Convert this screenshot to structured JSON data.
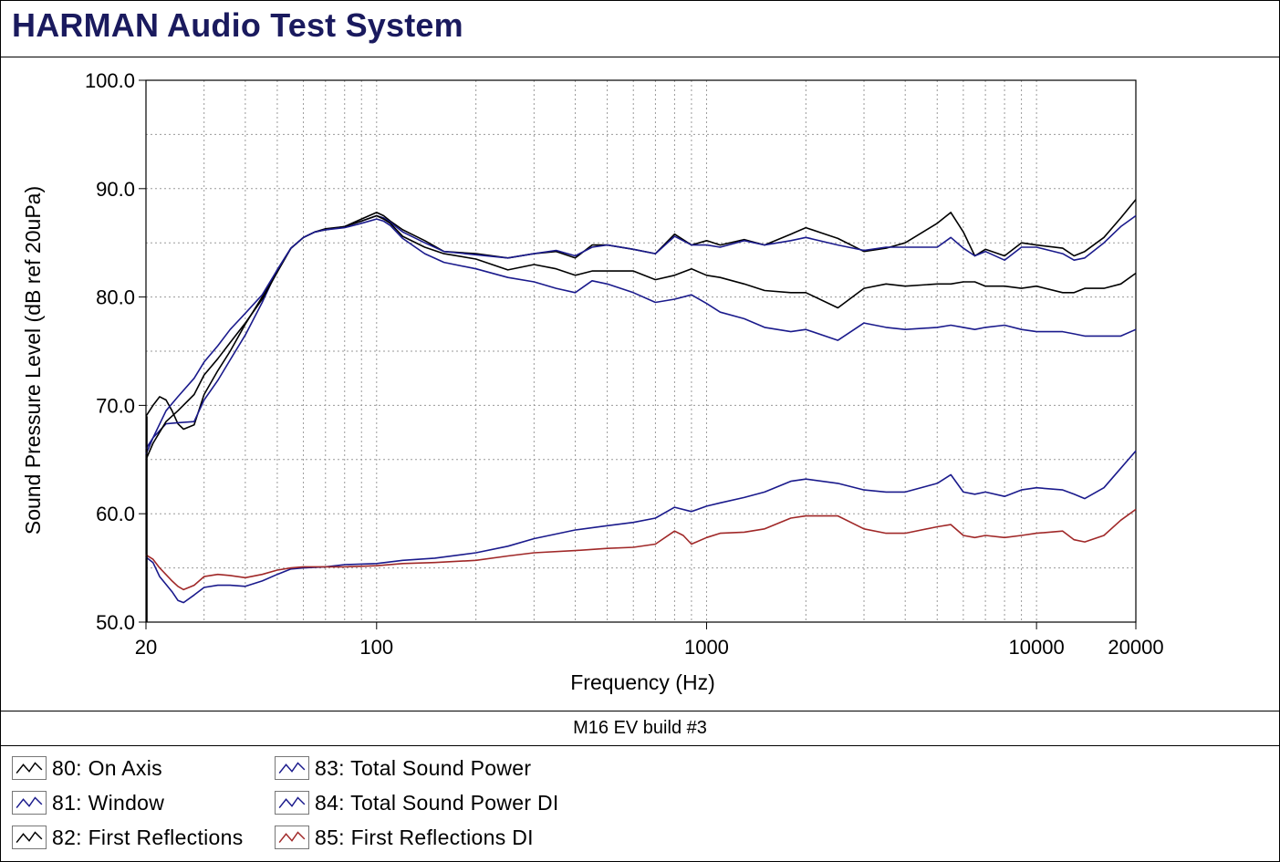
{
  "app": {
    "title": "HARMAN Audio Test System"
  },
  "caption": "M16 EV build #3",
  "chart_data": {
    "type": "line",
    "xscale": "log",
    "xlabel": "Frequency (Hz)",
    "ylabel": "Sound Pressure Level (dB ref 20uPa)",
    "xlim": [
      20,
      20000
    ],
    "ylim": [
      50,
      100
    ],
    "xtick_labels": [
      "20",
      "100",
      "1000",
      "10000",
      "20000"
    ],
    "xtick_values": [
      20,
      100,
      1000,
      10000,
      20000
    ],
    "ytick_labels": [
      "50.0",
      "60.0",
      "70.0",
      "80.0",
      "90.0",
      "100.0"
    ],
    "ytick_values": [
      50,
      60,
      70,
      80,
      90,
      100
    ],
    "grid": true,
    "legend_position": "bottom",
    "series": [
      {
        "name": "80: On Axis",
        "color": "#000000",
        "x": [
          20,
          21,
          22,
          23,
          24,
          25,
          26,
          28,
          30,
          33,
          36,
          40,
          45,
          50,
          55,
          60,
          65,
          70,
          80,
          90,
          100,
          105,
          110,
          120,
          140,
          160,
          200,
          250,
          300,
          350,
          400,
          450,
          500,
          600,
          700,
          800,
          900,
          1000,
          1100,
          1300,
          1500,
          1800,
          2000,
          2500,
          3000,
          3500,
          4000,
          5000,
          5500,
          6000,
          6500,
          7000,
          8000,
          9000,
          10000,
          12000,
          13000,
          14000,
          16000,
          18000,
          20000
        ],
        "y": [
          69,
          70,
          70.8,
          70.5,
          69.5,
          68.3,
          67.8,
          68.2,
          71.0,
          73.2,
          75.0,
          77.5,
          80.0,
          82.5,
          84.5,
          85.5,
          86.0,
          86.3,
          86.5,
          87.2,
          87.8,
          87.5,
          87.0,
          86.2,
          85.2,
          84.2,
          84.0,
          83.6,
          84.0,
          84.2,
          83.6,
          84.8,
          84.8,
          84.4,
          84.0,
          85.8,
          84.8,
          85.2,
          84.8,
          85.3,
          84.8,
          85.8,
          86.4,
          85.4,
          84.2,
          84.5,
          85.0,
          86.8,
          87.8,
          86.0,
          83.8,
          84.4,
          83.8,
          85.0,
          84.8,
          84.5,
          83.8,
          84.2,
          85.5,
          87.3,
          89.0
        ]
      },
      {
        "name": "81: Window",
        "color": "#1a1a8c",
        "x": [
          20,
          21,
          23,
          25,
          28,
          30,
          33,
          36,
          40,
          45,
          50,
          55,
          60,
          65,
          70,
          80,
          90,
          100,
          105,
          110,
          120,
          140,
          160,
          200,
          250,
          300,
          350,
          400,
          450,
          500,
          600,
          700,
          800,
          900,
          1000,
          1100,
          1300,
          1500,
          1800,
          2000,
          2500,
          3000,
          3500,
          4000,
          5000,
          5500,
          6000,
          6500,
          7000,
          8000,
          9000,
          10000,
          12000,
          13000,
          14000,
          16000,
          18000,
          20000
        ],
        "y": [
          66,
          67,
          68.3,
          68.4,
          68.5,
          70.5,
          72.3,
          74.2,
          76.5,
          79.5,
          82.5,
          84.5,
          85.5,
          86.0,
          86.2,
          86.5,
          87.0,
          87.5,
          87.3,
          86.9,
          86.0,
          85.0,
          84.2,
          83.9,
          83.6,
          84.0,
          84.3,
          83.8,
          84.6,
          84.8,
          84.4,
          84.0,
          85.6,
          84.8,
          84.8,
          84.6,
          85.2,
          84.8,
          85.2,
          85.5,
          84.8,
          84.3,
          84.6,
          84.6,
          84.6,
          85.5,
          84.5,
          83.8,
          84.2,
          83.4,
          84.6,
          84.6,
          84.0,
          83.4,
          83.6,
          85.0,
          86.5,
          87.5
        ]
      },
      {
        "name": "82: First Reflections",
        "color": "#000000",
        "x": [
          20,
          21,
          23,
          25,
          28,
          30,
          33,
          36,
          40,
          45,
          50,
          55,
          60,
          65,
          70,
          80,
          90,
          100,
          105,
          110,
          120,
          140,
          160,
          200,
          250,
          300,
          350,
          400,
          450,
          500,
          600,
          700,
          800,
          900,
          1000,
          1100,
          1300,
          1500,
          1800,
          2000,
          2500,
          3000,
          3500,
          4000,
          5000,
          5500,
          6000,
          6500,
          7000,
          8000,
          9000,
          10000,
          12000,
          13000,
          14000,
          16000,
          18000,
          20000
        ],
        "y": [
          65,
          66.5,
          68.5,
          69.5,
          71.0,
          72.8,
          74.3,
          75.8,
          77.6,
          79.8,
          82.3,
          84.5,
          85.5,
          86.0,
          86.2,
          86.5,
          87.0,
          87.5,
          87.2,
          86.8,
          85.6,
          84.6,
          84.0,
          83.5,
          82.5,
          83.0,
          82.6,
          82.0,
          82.4,
          82.4,
          82.4,
          81.6,
          82.0,
          82.6,
          82.0,
          81.8,
          81.2,
          80.6,
          80.4,
          80.4,
          79.0,
          80.8,
          81.2,
          81.0,
          81.2,
          81.2,
          81.4,
          81.4,
          81.0,
          81.0,
          80.8,
          81.0,
          80.4,
          80.4,
          80.8,
          80.8,
          81.2,
          82.2
        ]
      },
      {
        "name": "83: Total Sound Power",
        "color": "#1a1a8c",
        "x": [
          20,
          21,
          23,
          25,
          28,
          30,
          33,
          36,
          40,
          45,
          50,
          55,
          60,
          65,
          70,
          80,
          90,
          100,
          105,
          110,
          120,
          140,
          160,
          200,
          250,
          300,
          350,
          400,
          450,
          500,
          600,
          700,
          800,
          900,
          1000,
          1100,
          1300,
          1500,
          1800,
          2000,
          2500,
          3000,
          3500,
          4000,
          5000,
          5500,
          6000,
          6500,
          7000,
          8000,
          9000,
          10000,
          12000,
          13000,
          14000,
          16000,
          18000,
          20000
        ],
        "y": [
          65.5,
          67,
          69.5,
          70.8,
          72.5,
          74.0,
          75.5,
          77.0,
          78.5,
          80.2,
          82.5,
          84.5,
          85.5,
          86.0,
          86.2,
          86.4,
          86.8,
          87.2,
          87.0,
          86.6,
          85.4,
          84.0,
          83.2,
          82.6,
          81.8,
          81.4,
          80.8,
          80.4,
          81.5,
          81.2,
          80.4,
          79.5,
          79.8,
          80.2,
          79.4,
          78.6,
          78.0,
          77.2,
          76.8,
          77.0,
          76.0,
          77.6,
          77.2,
          77.0,
          77.2,
          77.4,
          77.2,
          77.0,
          77.2,
          77.4,
          77.0,
          76.8,
          76.8,
          76.6,
          76.4,
          76.4,
          76.4,
          77.0
        ]
      },
      {
        "name": "84: Total Sound Power DI",
        "color": "#1a1a8c",
        "x": [
          20,
          21,
          22,
          24,
          25,
          26,
          28,
          30,
          33,
          36,
          40,
          45,
          50,
          55,
          60,
          70,
          80,
          100,
          120,
          150,
          200,
          250,
          300,
          400,
          500,
          600,
          700,
          800,
          900,
          1000,
          1100,
          1300,
          1500,
          1800,
          2000,
          2500,
          3000,
          3500,
          4000,
          5000,
          5500,
          6000,
          6500,
          7000,
          8000,
          9000,
          10000,
          12000,
          13000,
          14000,
          16000,
          18000,
          20000
        ],
        "y": [
          56,
          55.5,
          54.2,
          52.8,
          52.0,
          51.8,
          52.5,
          53.2,
          53.4,
          53.4,
          53.3,
          53.8,
          54.4,
          54.9,
          55.0,
          55.1,
          55.3,
          55.4,
          55.7,
          55.9,
          56.4,
          57.0,
          57.7,
          58.5,
          58.9,
          59.2,
          59.6,
          60.6,
          60.2,
          60.7,
          61.0,
          61.5,
          62.0,
          63.0,
          63.2,
          62.8,
          62.2,
          62.0,
          62.0,
          62.8,
          63.6,
          62.0,
          61.8,
          62.0,
          61.6,
          62.2,
          62.4,
          62.2,
          61.8,
          61.4,
          62.4,
          64.2,
          65.8
        ]
      },
      {
        "name": "85: First Reflections DI",
        "color": "#a02828",
        "x": [
          20,
          21,
          22,
          24,
          25,
          26,
          28,
          30,
          33,
          36,
          40,
          45,
          50,
          55,
          60,
          70,
          80,
          100,
          120,
          150,
          200,
          250,
          300,
          400,
          500,
          600,
          700,
          800,
          850,
          900,
          1000,
          1100,
          1300,
          1500,
          1800,
          2000,
          2500,
          3000,
          3500,
          4000,
          5000,
          5500,
          6000,
          6500,
          7000,
          8000,
          9000,
          10000,
          12000,
          13000,
          14000,
          16000,
          18000,
          20000
        ],
        "y": [
          56.2,
          55.8,
          55.0,
          53.8,
          53.3,
          53.0,
          53.4,
          54.2,
          54.4,
          54.3,
          54.1,
          54.4,
          54.8,
          55.0,
          55.1,
          55.1,
          55.1,
          55.2,
          55.4,
          55.5,
          55.7,
          56.1,
          56.4,
          56.6,
          56.8,
          56.9,
          57.2,
          58.4,
          58.0,
          57.2,
          57.8,
          58.2,
          58.3,
          58.6,
          59.6,
          59.8,
          59.8,
          58.6,
          58.2,
          58.2,
          58.8,
          59.0,
          58.0,
          57.8,
          58.0,
          57.8,
          58.0,
          58.2,
          58.4,
          57.6,
          57.4,
          58.0,
          59.4,
          60.4
        ]
      }
    ]
  }
}
